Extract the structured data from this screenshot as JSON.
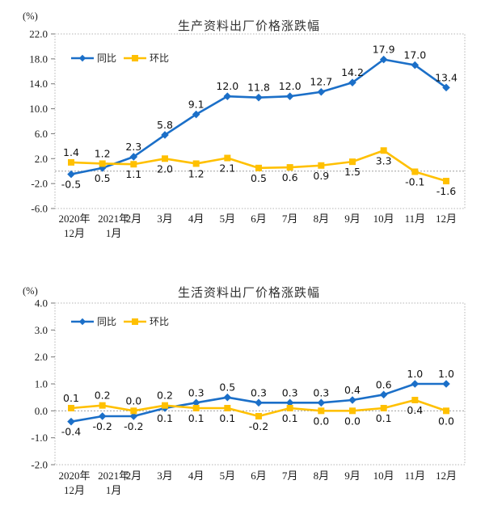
{
  "colors": {
    "background": "#ffffff",
    "frame": "#b5b5b5",
    "zero_line": "#a0a0a0",
    "tick": "#777777",
    "text": "#1a1a1a",
    "yoy_blue": "#1B6FC8",
    "mom_gold": "#FFC000"
  },
  "charts": [
    {
      "unit_label": "(%)",
      "chart_data": {
        "type": "line",
        "title": "生产资料出厂价格涨跌幅",
        "xlabel": "",
        "ylabel": "(%)",
        "categories": [
          [
            "2020年",
            "12月"
          ],
          [
            "2021年",
            "1月"
          ],
          "2月",
          "3月",
          "4月",
          "5月",
          "6月",
          "7月",
          "8月",
          "9月",
          "10月",
          "11月",
          "12月"
        ],
        "series": [
          {
            "key": "yoy",
            "name": "同比",
            "color": "#1B6FC8",
            "marker": "diamond",
            "values": [
              -0.5,
              0.5,
              2.3,
              5.8,
              9.1,
              12.0,
              11.8,
              12.0,
              12.7,
              14.2,
              17.9,
              17.0,
              13.4
            ]
          },
          {
            "key": "mom",
            "name": "环比",
            "color": "#FFC000",
            "marker": "square",
            "values": [
              1.4,
              1.2,
              1.1,
              2.0,
              1.2,
              2.1,
              0.5,
              0.6,
              0.9,
              1.5,
              3.3,
              -0.1,
              -1.6
            ]
          }
        ],
        "ylim": [
          -6,
          22
        ],
        "yticks": [
          22,
          18,
          14,
          10,
          6,
          2,
          -2,
          -6
        ],
        "grid": false,
        "zero_line": true,
        "legend_position": "inside-top-left"
      }
    },
    {
      "unit_label": "(%)",
      "chart_data": {
        "type": "line",
        "title": "生活资料出厂价格涨跌幅",
        "xlabel": "",
        "ylabel": "(%)",
        "categories": [
          [
            "2020年",
            "12月"
          ],
          [
            "2021年",
            "1月"
          ],
          "2月",
          "3月",
          "4月",
          "5月",
          "6月",
          "7月",
          "8月",
          "9月",
          "10月",
          "11月",
          "12月"
        ],
        "series": [
          {
            "key": "yoy",
            "name": "同比",
            "color": "#1B6FC8",
            "marker": "diamond",
            "values": [
              -0.4,
              -0.2,
              -0.2,
              0.1,
              0.3,
              0.5,
              0.3,
              0.3,
              0.3,
              0.4,
              0.6,
              1.0,
              1.0
            ]
          },
          {
            "key": "mom",
            "name": "环比",
            "color": "#FFC000",
            "marker": "square",
            "values": [
              0.1,
              0.2,
              0.0,
              0.2,
              0.1,
              0.1,
              -0.2,
              0.1,
              0.0,
              0.0,
              0.1,
              0.4,
              0.0
            ]
          }
        ],
        "ylim": [
          -2,
          4
        ],
        "yticks": [
          4,
          3,
          2,
          1,
          0,
          -1,
          -2
        ],
        "grid": false,
        "zero_line": true,
        "legend_position": "inside-top-left"
      }
    }
  ]
}
